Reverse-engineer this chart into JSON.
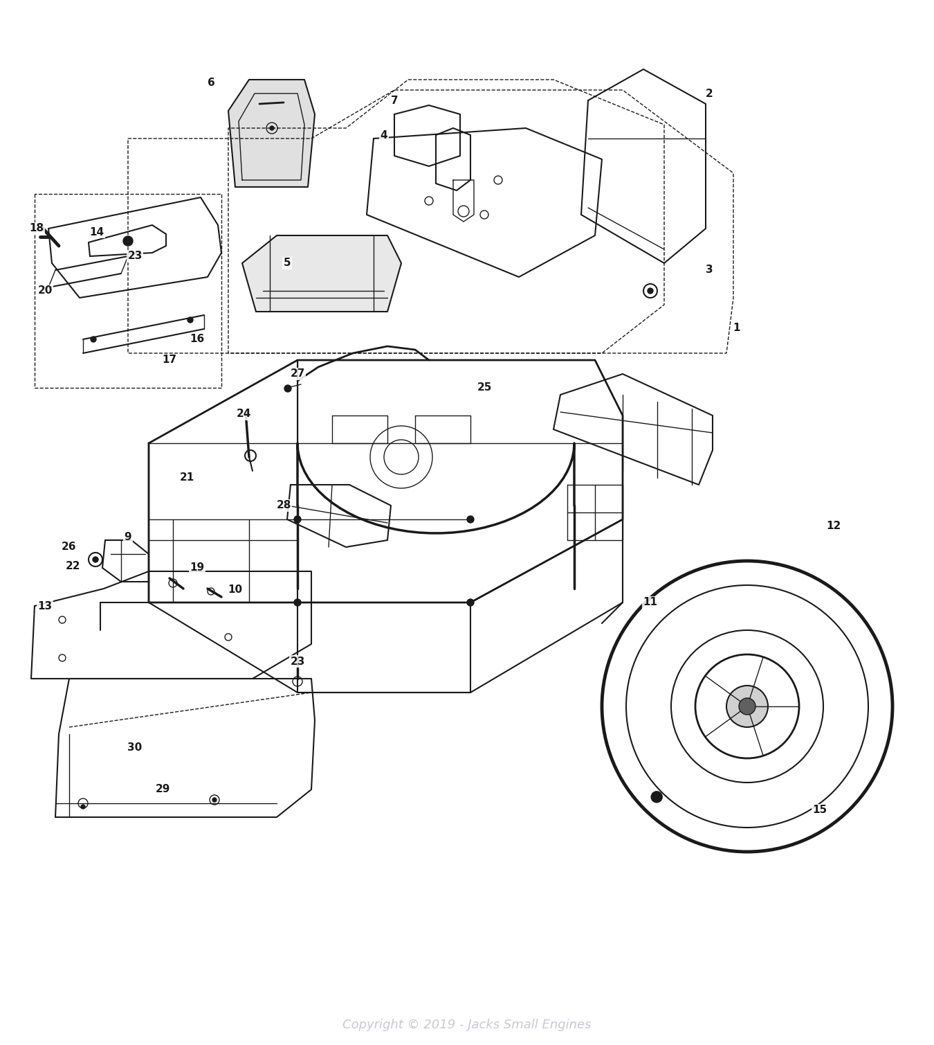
{
  "copyright": "Copyright © 2019 - Jacks Small Engines",
  "background_color": "#ffffff",
  "line_color": "#1a1a1a",
  "copyright_color": "#c8c8d0",
  "figsize": [
    13.5,
    15.09
  ],
  "dpi": 100
}
